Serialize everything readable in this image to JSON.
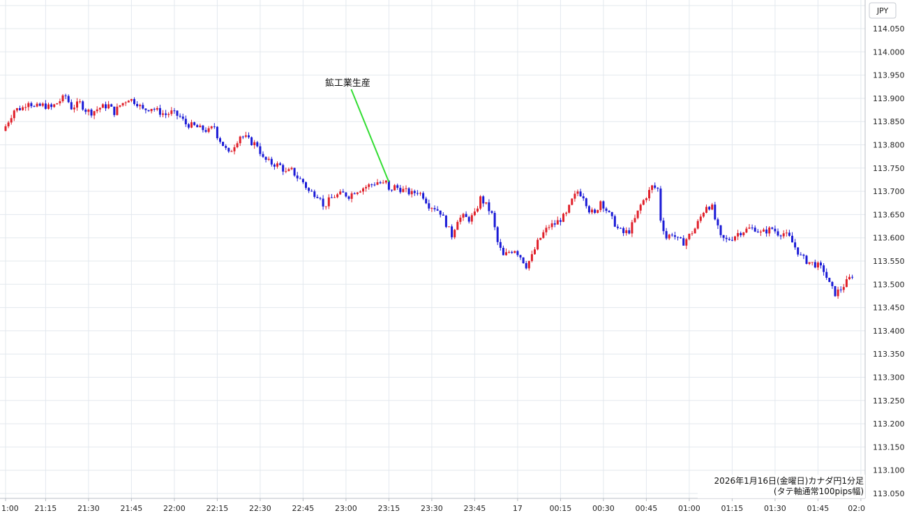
{
  "chart_data": {
    "type": "candlestick",
    "currency_label": "JPY",
    "caption_line1": "2026年1月16日(金曜日)カナダ円1分足",
    "caption_line2": "(タテ軸通常100pips幅)",
    "event_annotation": {
      "label": "鉱工業生産",
      "time": "23:15",
      "price": 113.72
    },
    "ylim": [
      113.05,
      114.075
    ],
    "y_ticks": [
      "114.050",
      "114.000",
      "113.950",
      "113.900",
      "113.850",
      "113.800",
      "113.750",
      "113.700",
      "113.650",
      "113.600",
      "113.550",
      "113.500",
      "113.450",
      "113.400",
      "113.350",
      "113.300",
      "113.250",
      "113.200",
      "113.150",
      "113.100",
      "113.050"
    ],
    "x_start": "21:01",
    "x_ticks": [
      {
        "time": "21:01",
        "label": "1:00"
      },
      {
        "time": "21:15",
        "label": "21:15"
      },
      {
        "time": "21:30",
        "label": "21:30"
      },
      {
        "time": "21:45",
        "label": "21:45"
      },
      {
        "time": "22:00",
        "label": "22:00"
      },
      {
        "time": "22:15",
        "label": "22:15"
      },
      {
        "time": "22:30",
        "label": "22:30"
      },
      {
        "time": "22:45",
        "label": "22:45"
      },
      {
        "time": "23:00",
        "label": "23:00"
      },
      {
        "time": "23:15",
        "label": "23:15"
      },
      {
        "time": "23:30",
        "label": "23:30"
      },
      {
        "time": "23:45",
        "label": "23:45"
      },
      {
        "time": "00:00",
        "label": "17"
      },
      {
        "time": "00:15",
        "label": "00:15"
      },
      {
        "time": "00:30",
        "label": "00:30"
      },
      {
        "time": "00:45",
        "label": "00:45"
      },
      {
        "time": "01:00",
        "label": "01:00"
      },
      {
        "time": "01:15",
        "label": "01:15"
      },
      {
        "time": "01:30",
        "label": "01:30"
      },
      {
        "time": "01:45",
        "label": "01:45"
      },
      {
        "time": "02:00",
        "label": "02:0"
      }
    ],
    "price_path": [
      [
        "21:01",
        113.83
      ],
      [
        "21:02",
        113.84
      ],
      [
        "21:05",
        113.875
      ],
      [
        "21:08",
        113.88
      ],
      [
        "21:10",
        113.895
      ],
      [
        "21:12",
        113.88
      ],
      [
        "21:15",
        113.885
      ],
      [
        "21:18",
        113.88
      ],
      [
        "21:20",
        113.89
      ],
      [
        "21:23",
        113.905
      ],
      [
        "21:25",
        113.88
      ],
      [
        "21:28",
        113.89
      ],
      [
        "21:30",
        113.875
      ],
      [
        "21:32",
        113.87
      ],
      [
        "21:35",
        113.88
      ],
      [
        "21:38",
        113.885
      ],
      [
        "21:40",
        113.87
      ],
      [
        "21:42",
        113.885
      ],
      [
        "21:45",
        113.9
      ],
      [
        "21:48",
        113.89
      ],
      [
        "21:50",
        113.875
      ],
      [
        "21:53",
        113.88
      ],
      [
        "21:56",
        113.87
      ],
      [
        "21:58",
        113.865
      ],
      [
        "22:00",
        113.87
      ],
      [
        "22:03",
        113.86
      ],
      [
        "22:05",
        113.845
      ],
      [
        "22:08",
        113.84
      ],
      [
        "22:10",
        113.835
      ],
      [
        "22:13",
        113.83
      ],
      [
        "22:15",
        113.84
      ],
      [
        "22:16",
        113.82
      ],
      [
        "22:18",
        113.8
      ],
      [
        "22:20",
        113.78
      ],
      [
        "22:22",
        113.8
      ],
      [
        "22:24",
        113.82
      ],
      [
        "22:26",
        113.815
      ],
      [
        "22:28",
        113.805
      ],
      [
        "22:30",
        113.8
      ],
      [
        "22:32",
        113.77
      ],
      [
        "22:35",
        113.76
      ],
      [
        "22:38",
        113.755
      ],
      [
        "22:40",
        113.74
      ],
      [
        "22:42",
        113.745
      ],
      [
        "22:44",
        113.73
      ],
      [
        "22:46",
        113.72
      ],
      [
        "22:48",
        113.7
      ],
      [
        "22:50",
        113.695
      ],
      [
        "22:52",
        113.69
      ],
      [
        "22:53",
        113.665
      ],
      [
        "22:55",
        113.68
      ],
      [
        "22:57",
        113.69
      ],
      [
        "23:00",
        113.695
      ],
      [
        "23:02",
        113.69
      ],
      [
        "23:04",
        113.7
      ],
      [
        "23:06",
        113.705
      ],
      [
        "23:08",
        113.71
      ],
      [
        "23:10",
        113.715
      ],
      [
        "23:12",
        113.72
      ],
      [
        "23:14",
        113.715
      ],
      [
        "23:15",
        113.72
      ],
      [
        "23:16",
        113.7
      ],
      [
        "23:18",
        113.71
      ],
      [
        "23:20",
        113.705
      ],
      [
        "23:22",
        113.7
      ],
      [
        "23:24",
        113.695
      ],
      [
        "23:26",
        113.7
      ],
      [
        "23:28",
        113.69
      ],
      [
        "23:30",
        113.67
      ],
      [
        "23:32",
        113.665
      ],
      [
        "23:34",
        113.655
      ],
      [
        "23:36",
        113.63
      ],
      [
        "23:38",
        113.605
      ],
      [
        "23:40",
        113.64
      ],
      [
        "23:42",
        113.645
      ],
      [
        "23:44",
        113.64
      ],
      [
        "23:46",
        113.65
      ],
      [
        "23:48",
        113.685
      ],
      [
        "23:50",
        113.67
      ],
      [
        "23:52",
        113.65
      ],
      [
        "23:54",
        113.59
      ],
      [
        "23:56",
        113.56
      ],
      [
        "23:58",
        113.57
      ],
      [
        "00:00",
        113.575
      ],
      [
        "00:02",
        113.56
      ],
      [
        "00:04",
        113.54
      ],
      [
        "00:06",
        113.56
      ],
      [
        "00:08",
        113.59
      ],
      [
        "00:10",
        113.61
      ],
      [
        "00:12",
        113.625
      ],
      [
        "00:14",
        113.63
      ],
      [
        "00:16",
        113.64
      ],
      [
        "00:18",
        113.65
      ],
      [
        "00:20",
        113.68
      ],
      [
        "00:22",
        113.7
      ],
      [
        "00:24",
        113.69
      ],
      [
        "00:26",
        113.66
      ],
      [
        "00:28",
        113.65
      ],
      [
        "00:30",
        113.68
      ],
      [
        "00:32",
        113.66
      ],
      [
        "00:34",
        113.64
      ],
      [
        "00:36",
        113.62
      ],
      [
        "00:38",
        113.61
      ],
      [
        "00:40",
        113.615
      ],
      [
        "00:42",
        113.64
      ],
      [
        "00:44",
        113.67
      ],
      [
        "00:46",
        113.69
      ],
      [
        "00:48",
        113.71
      ],
      [
        "00:50",
        113.705
      ],
      [
        "00:51",
        113.64
      ],
      [
        "00:53",
        113.6
      ],
      [
        "00:55",
        113.61
      ],
      [
        "00:57",
        113.595
      ],
      [
        "00:59",
        113.59
      ],
      [
        "01:01",
        113.605
      ],
      [
        "01:03",
        113.62
      ],
      [
        "01:05",
        113.645
      ],
      [
        "01:07",
        113.67
      ],
      [
        "01:09",
        113.665
      ],
      [
        "01:10",
        113.64
      ],
      [
        "01:12",
        113.6
      ],
      [
        "01:14",
        113.595
      ],
      [
        "01:16",
        113.6
      ],
      [
        "01:18",
        113.61
      ],
      [
        "01:20",
        113.615
      ],
      [
        "01:22",
        113.62
      ],
      [
        "01:24",
        113.62
      ],
      [
        "01:26",
        113.61
      ],
      [
        "01:28",
        113.615
      ],
      [
        "01:30",
        113.62
      ],
      [
        "01:32",
        113.61
      ],
      [
        "01:34",
        113.61
      ],
      [
        "01:36",
        113.6
      ],
      [
        "01:38",
        113.58
      ],
      [
        "01:40",
        113.56
      ],
      [
        "01:42",
        113.55
      ],
      [
        "01:44",
        113.545
      ],
      [
        "01:46",
        113.54
      ],
      [
        "01:48",
        113.53
      ],
      [
        "01:50",
        113.5
      ],
      [
        "01:52",
        113.48
      ],
      [
        "01:54",
        113.49
      ],
      [
        "01:56",
        113.505
      ],
      [
        "01:58",
        113.52
      ]
    ],
    "colors": {
      "up": "#e0202a",
      "down": "#1a1ad6",
      "grid": "#e3e8ee",
      "annotation_line": "#33dd33"
    }
  }
}
